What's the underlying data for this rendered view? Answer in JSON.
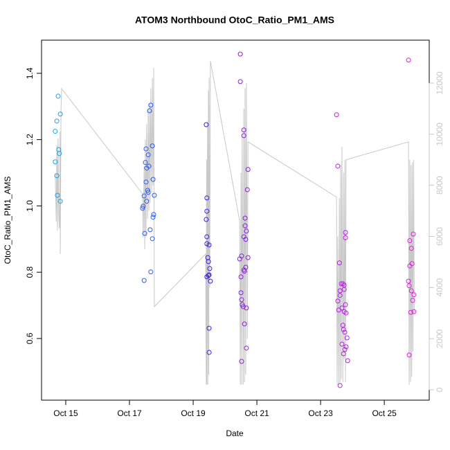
{
  "chart_data": {
    "type": "scatter",
    "title": "ATOM3 Northbound OtoC_Ratio_PM1_AMS",
    "xlabel": "Date",
    "ylabel": "OtoC_Ratio_PM1_AMS",
    "xlim": [
      14.24,
      26.41
    ],
    "xticks": [
      {
        "value": 15,
        "label": "Oct 15"
      },
      {
        "value": 17,
        "label": "Oct 17"
      },
      {
        "value": 19,
        "label": "Oct 19"
      },
      {
        "value": 21,
        "label": "Oct 21"
      },
      {
        "value": 23,
        "label": "Oct 23"
      },
      {
        "value": 25,
        "label": "Oct 25"
      }
    ],
    "ylim": [
      0.414,
      1.5
    ],
    "yticks": [
      0.6,
      0.8,
      {
        "value": 1,
        "label": "1.0"
      },
      1.2,
      1.4
    ],
    "y2lim": [
      -406,
      13679
    ],
    "y2ticks": [
      0,
      2000,
      4000,
      6000,
      8000,
      10000,
      12000
    ],
    "y2color": "#c8c8c8",
    "series": [
      {
        "type": "line",
        "axis": "y2",
        "color": "#c8c8c8",
        "x": [
          14.67,
          14.7,
          14.72,
          14.74,
          14.76,
          14.78,
          14.8,
          14.82,
          14.83,
          14.85,
          14.87,
          17.41,
          17.43,
          17.46,
          17.48,
          17.5,
          17.52,
          17.54,
          17.57,
          17.59,
          17.61,
          17.63,
          17.65,
          17.67,
          17.7,
          17.72,
          17.74,
          17.76,
          17.78,
          19.39,
          19.41,
          19.42,
          19.43,
          19.45,
          19.46,
          19.48,
          19.49,
          19.5,
          19.52,
          19.54,
          20.46,
          20.48,
          20.5,
          20.52,
          20.54,
          20.57,
          20.59,
          20.61,
          20.63,
          20.65,
          20.67,
          20.7,
          20.72,
          23.5,
          23.52,
          23.54,
          23.57,
          23.59,
          23.61,
          23.63,
          23.65,
          23.67,
          23.7,
          23.72,
          23.74,
          23.76,
          23.78,
          23.8,
          25.76,
          25.78,
          25.8,
          25.82,
          25.84,
          25.86,
          25.88,
          25.9,
          25.92,
          25.94
        ],
        "values": [
          8479,
          6583,
          9563,
          6231,
          9834,
          6854,
          6312,
          10105,
          5310,
          10917,
          11784,
          7666,
          5960,
          8750,
          5500,
          9800,
          6000,
          10400,
          6700,
          11000,
          7000,
          11200,
          7300,
          11800,
          7700,
          12200,
          8000,
          12600,
          3250,
          5310,
          200,
          9000,
          200,
          10500,
          200,
          11700,
          600,
          12200,
          4000,
          12860,
          6600,
          200,
          8500,
          200,
          10000,
          200,
          11000,
          300,
          11800,
          600,
          12000,
          2000,
          9700,
          7540,
          200,
          6000,
          200,
          7500,
          300,
          8800,
          400,
          9500,
          300,
          8500,
          1200,
          9000,
          300,
          9000,
          9700,
          200,
          9000,
          300,
          8800,
          500,
          8900,
          1500,
          9000,
          3000
        ]
      },
      {
        "type": "scatter",
        "color": "#1fa0e6",
        "x": [
          14.67,
          14.72,
          14.76,
          14.83,
          14.67,
          14.78,
          14.72,
          14.8,
          14.74,
          14.83
        ],
        "values": [
          1.225,
          1.256,
          1.331,
          1.277,
          1.133,
          1.17,
          1.091,
          1.158,
          1.032,
          1.014
        ]
      },
      {
        "type": "scatter",
        "color": "#2a5bf0",
        "x": [
          17.67,
          17.63,
          17.72,
          17.59,
          17.52,
          17.5,
          17.54,
          17.61,
          17.74,
          17.52,
          17.57,
          17.59,
          17.46,
          17.78,
          17.54,
          17.43,
          17.41,
          17.76,
          17.74,
          17.65,
          17.48,
          17.72,
          17.67,
          17.46
        ],
        "values": [
          1.304,
          1.287,
          1.181,
          1.154,
          1.172,
          1.131,
          1.114,
          1.12,
          1.08,
          1.072,
          1.047,
          1.041,
          1.03,
          1.032,
          1.014,
          0.999,
          0.993,
          0.974,
          0.966,
          0.928,
          0.917,
          0.901,
          0.801,
          0.775
        ]
      },
      {
        "type": "scatter",
        "color": "#3a1fe0",
        "x": [
          19.41,
          19.43,
          19.43,
          19.41,
          19.43,
          19.43,
          19.5,
          19.46,
          19.48,
          19.52,
          19.5,
          19.48,
          19.43,
          19.54,
          19.5,
          19.5
        ],
        "values": [
          1.245,
          1.024,
          0.984,
          0.959,
          0.907,
          0.886,
          0.882,
          0.844,
          0.832,
          0.811,
          0.792,
          0.79,
          0.786,
          0.773,
          0.631,
          0.558
        ]
      },
      {
        "type": "scatter",
        "color": "#8a1fe0",
        "x": [
          20.48,
          20.48,
          20.59,
          20.59,
          20.72,
          20.7,
          20.63,
          20.63,
          20.67,
          20.59,
          20.65,
          20.72,
          20.52,
          20.46,
          20.65,
          20.59,
          20.61,
          20.5,
          20.5,
          20.52,
          20.54,
          20.57,
          20.67,
          20.61,
          20.67,
          20.52
        ],
        "values": [
          1.458,
          1.375,
          1.229,
          1.212,
          1.11,
          1.049,
          0.963,
          0.94,
          0.924,
          0.907,
          0.899,
          0.844,
          0.849,
          0.84,
          0.815,
          0.807,
          0.803,
          0.786,
          0.738,
          0.717,
          0.702,
          0.696,
          0.692,
          0.644,
          0.571,
          0.531
        ]
      },
      {
        "type": "scatter",
        "color": "#b81ee8",
        "x": [
          23.5,
          23.54,
          23.59,
          23.65,
          23.7,
          23.74,
          23.78,
          23.78,
          23.74,
          23.61,
          23.54,
          23.61,
          23.78,
          23.67,
          23.57,
          23.74,
          23.8,
          23.7,
          23.72,
          23.76,
          23.83,
          23.67,
          23.8,
          23.76,
          23.72,
          23.85,
          23.61
        ],
        "values": [
          1.275,
          1.12,
          0.828,
          0.765,
          0.765,
          0.761,
          0.92,
          0.904,
          0.748,
          0.744,
          0.713,
          0.73,
          0.702,
          0.692,
          0.686,
          0.681,
          0.677,
          0.64,
          0.627,
          0.619,
          0.602,
          0.583,
          0.575,
          0.567,
          0.554,
          0.533,
          0.458
        ]
      },
      {
        "type": "scatter",
        "color": "#e01ee0",
        "x": [
          25.76,
          25.91,
          25.8,
          25.85,
          25.87,
          25.8,
          25.76,
          25.78,
          25.85,
          25.93,
          25.89,
          25.93,
          25.83,
          25.78
        ],
        "values": [
          1.44,
          0.915,
          0.895,
          0.872,
          0.826,
          0.819,
          0.773,
          0.759,
          0.744,
          0.732,
          0.715,
          0.681,
          0.679,
          0.55
        ]
      }
    ]
  }
}
